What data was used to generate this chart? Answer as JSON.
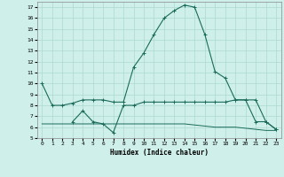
{
  "title": "",
  "xlabel": "Humidex (Indice chaleur)",
  "ylabel": "",
  "bg_color": "#cff0ea",
  "grid_color": "#aad8d0",
  "line_color": "#1a6b5a",
  "xlim": [
    -0.5,
    23.5
  ],
  "ylim": [
    5,
    17.5
  ],
  "yticks": [
    5,
    6,
    7,
    8,
    9,
    10,
    11,
    12,
    13,
    14,
    15,
    16,
    17
  ],
  "xticks": [
    0,
    1,
    2,
    3,
    4,
    5,
    6,
    7,
    8,
    9,
    10,
    11,
    12,
    13,
    14,
    15,
    16,
    17,
    18,
    19,
    20,
    21,
    22,
    23
  ],
  "line1_x": [
    0,
    1,
    2,
    3,
    4,
    5,
    6,
    7,
    8,
    9,
    10,
    11,
    12,
    13,
    14,
    15,
    16,
    17,
    18,
    19,
    20,
    21,
    22,
    23
  ],
  "line1_y": [
    10.0,
    8.0,
    8.0,
    8.2,
    8.5,
    8.5,
    8.5,
    8.3,
    8.3,
    11.5,
    12.8,
    14.5,
    16.0,
    16.7,
    17.2,
    17.0,
    14.5,
    11.1,
    10.5,
    8.5,
    8.5,
    8.5,
    6.5,
    5.8
  ],
  "line2_x": [
    0,
    1,
    2,
    3,
    4,
    5,
    6,
    7,
    8,
    9,
    10,
    11,
    12,
    13,
    14,
    15,
    16,
    17,
    18,
    19,
    20,
    21,
    22,
    23
  ],
  "line2_y": [
    6.3,
    6.3,
    6.3,
    6.3,
    6.3,
    6.3,
    6.3,
    6.3,
    6.3,
    6.3,
    6.3,
    6.3,
    6.3,
    6.3,
    6.3,
    6.2,
    6.1,
    6.0,
    6.0,
    6.0,
    5.9,
    5.8,
    5.7,
    5.7
  ],
  "line3_x": [
    3,
    4,
    5,
    6,
    7,
    8,
    9,
    10,
    11,
    12,
    13,
    14,
    15,
    16,
    17,
    18,
    19,
    20,
    21,
    22,
    23
  ],
  "line3_y": [
    6.5,
    7.5,
    6.5,
    6.3,
    5.5,
    8.0,
    8.0,
    8.3,
    8.3,
    8.3,
    8.3,
    8.3,
    8.3,
    8.3,
    8.3,
    8.3,
    8.5,
    8.5,
    6.5,
    6.5,
    5.8
  ]
}
